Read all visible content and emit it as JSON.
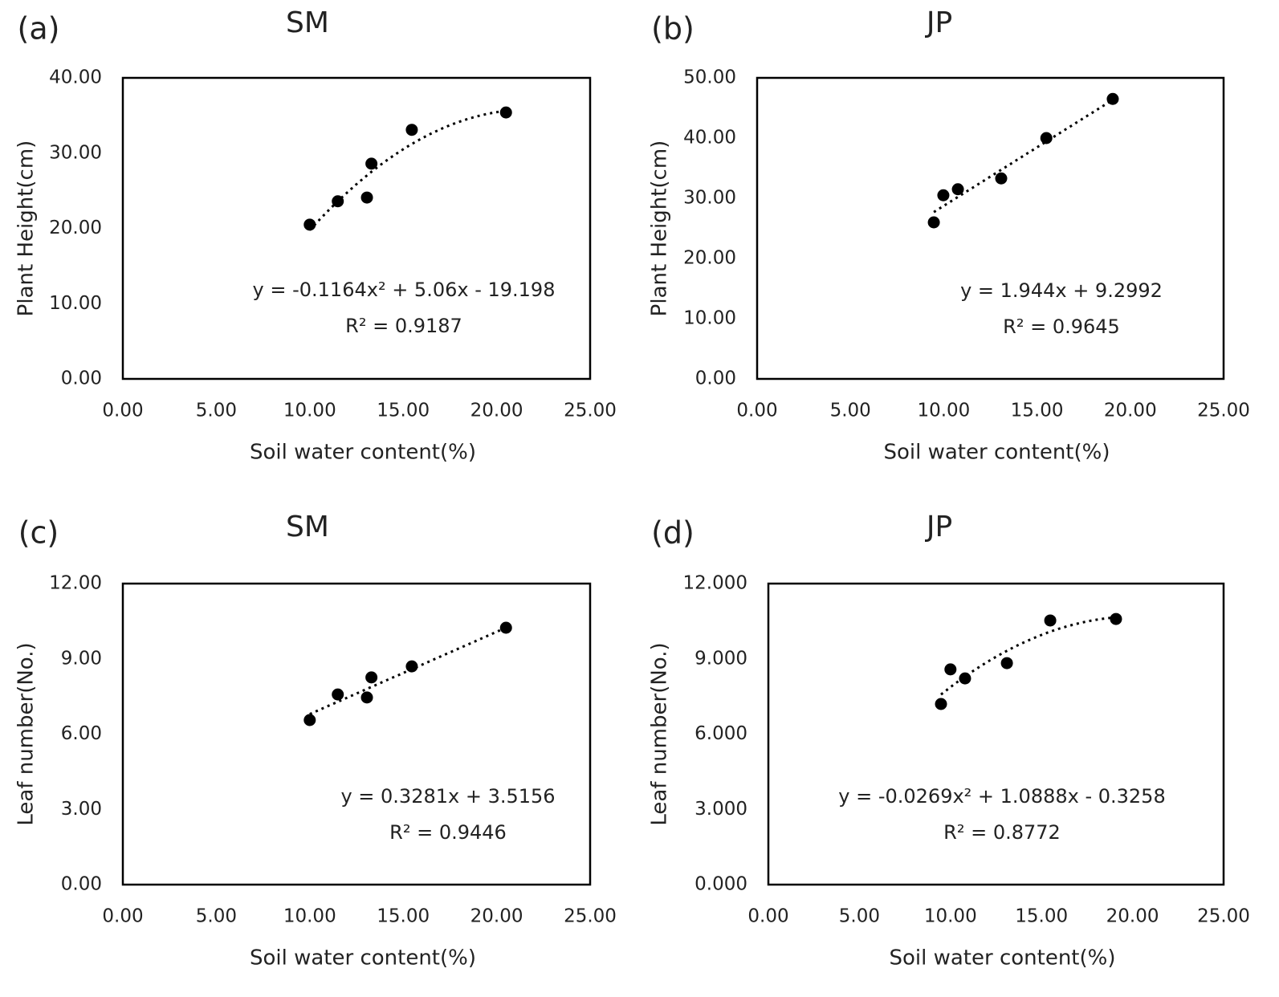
{
  "chart_data": [
    {
      "type": "scatter",
      "panel_label": "(a)",
      "title": "SM",
      "x_label": "Soil water content(%)",
      "y_label": "Plant Height(cm)",
      "x": [
        10.0,
        11.5,
        13.06,
        13.3,
        15.46,
        20.5
      ],
      "values": [
        20.5,
        23.6,
        24.1,
        28.6,
        33.1,
        35.4
      ],
      "color": "#000000",
      "xlim": [
        0,
        25
      ],
      "ylim": [
        0,
        40
      ],
      "xticks": [
        {
          "value": 0,
          "label": "0.00"
        },
        {
          "value": 5,
          "label": "5.00"
        },
        {
          "value": 10,
          "label": "10.00"
        },
        {
          "value": 15,
          "label": "15.00"
        },
        {
          "value": 20,
          "label": "20.00"
        },
        {
          "value": 25,
          "label": "25.00"
        }
      ],
      "yticks": [
        {
          "value": 0,
          "label": "0.00"
        },
        {
          "value": 10,
          "label": "10.00"
        },
        {
          "value": 20,
          "label": "20.00"
        },
        {
          "value": 30,
          "label": "30.00"
        },
        {
          "value": 40,
          "label": "40.00"
        }
      ],
      "trendline": {
        "coefficients": [
          -0.1164,
          5.06,
          -19.198
        ],
        "equation": "y = -0.1164x² + 5.06x - 19.198",
        "r2": "R² = 0.9187"
      }
    },
    {
      "type": "scatter",
      "panel_label": "(b)",
      "title": "JP",
      "x_label": "Soil water content(%)",
      "y_label": "Plant Height(cm)",
      "x": [
        9.47,
        9.98,
        10.76,
        13.08,
        15.5,
        19.06
      ],
      "values": [
        26.0,
        30.5,
        31.5,
        33.3,
        40.0,
        46.5
      ],
      "color": "#000000",
      "xlim": [
        0,
        25
      ],
      "ylim": [
        0,
        50
      ],
      "xticks": [
        {
          "value": 0,
          "label": "0.00"
        },
        {
          "value": 5,
          "label": "5.00"
        },
        {
          "value": 10,
          "label": "10.00"
        },
        {
          "value": 15,
          "label": "15.00"
        },
        {
          "value": 20,
          "label": "20.00"
        },
        {
          "value": 25,
          "label": "25.00"
        }
      ],
      "yticks": [
        {
          "value": 0,
          "label": "0.00"
        },
        {
          "value": 10,
          "label": "10.00"
        },
        {
          "value": 20,
          "label": "20.00"
        },
        {
          "value": 30,
          "label": "30.00"
        },
        {
          "value": 40,
          "label": "40.00"
        },
        {
          "value": 50,
          "label": "50.00"
        }
      ],
      "trendline": {
        "coefficients": [
          0,
          1.944,
          9.2992
        ],
        "equation": "y = 1.944x + 9.2992",
        "r2": "R² = 0.9645"
      }
    },
    {
      "type": "scatter",
      "panel_label": "(c)",
      "title": "SM",
      "x_label": "Soil water content(%)",
      "y_label": "Leaf number(No.)",
      "x": [
        10.0,
        11.5,
        13.06,
        13.3,
        15.46,
        20.5
      ],
      "values": [
        6.56,
        7.58,
        7.46,
        8.26,
        8.7,
        10.24
      ],
      "color": "#000000",
      "xlim": [
        0,
        25
      ],
      "ylim": [
        0,
        12
      ],
      "xticks": [
        {
          "value": 0,
          "label": "0.00"
        },
        {
          "value": 5,
          "label": "5.00"
        },
        {
          "value": 10,
          "label": "10.00"
        },
        {
          "value": 15,
          "label": "15.00"
        },
        {
          "value": 20,
          "label": "20.00"
        },
        {
          "value": 25,
          "label": "25.00"
        }
      ],
      "yticks": [
        {
          "value": 0,
          "label": "0.00"
        },
        {
          "value": 3,
          "label": "3.00"
        },
        {
          "value": 6,
          "label": "6.00"
        },
        {
          "value": 9,
          "label": "9.00"
        },
        {
          "value": 12,
          "label": "12.00"
        }
      ],
      "trendline": {
        "coefficients": [
          0,
          0.3281,
          3.5156
        ],
        "equation": "y = 0.3281x + 3.5156",
        "r2": "R² = 0.9446"
      }
    },
    {
      "type": "scatter",
      "panel_label": "(d)",
      "title": "JP",
      "x_label": "Soil water content(%)",
      "y_label": "Leaf number(No.)",
      "x": [
        9.48,
        10.0,
        10.8,
        13.1,
        15.48,
        19.09
      ],
      "values": [
        7.2,
        8.58,
        8.22,
        8.83,
        10.53,
        10.59
      ],
      "color": "#000000",
      "xlim": [
        0,
        25
      ],
      "ylim": [
        0,
        12
      ],
      "xticks": [
        {
          "value": 0,
          "label": "0.00"
        },
        {
          "value": 5,
          "label": "5.00"
        },
        {
          "value": 10,
          "label": "10.00"
        },
        {
          "value": 15,
          "label": "15.00"
        },
        {
          "value": 20,
          "label": "20.00"
        },
        {
          "value": 25,
          "label": "25.00"
        }
      ],
      "yticks": [
        {
          "value": 0,
          "label": "0.000"
        },
        {
          "value": 3,
          "label": "3.000"
        },
        {
          "value": 6,
          "label": "6.000"
        },
        {
          "value": 9,
          "label": "9.000"
        },
        {
          "value": 12,
          "label": "12.000"
        }
      ],
      "trendline": {
        "coefficients": [
          -0.0269,
          1.0888,
          -0.3258
        ],
        "equation": "y = -0.0269x² + 1.0888x - 0.3258",
        "r2": "R² = 0.8772"
      }
    }
  ]
}
